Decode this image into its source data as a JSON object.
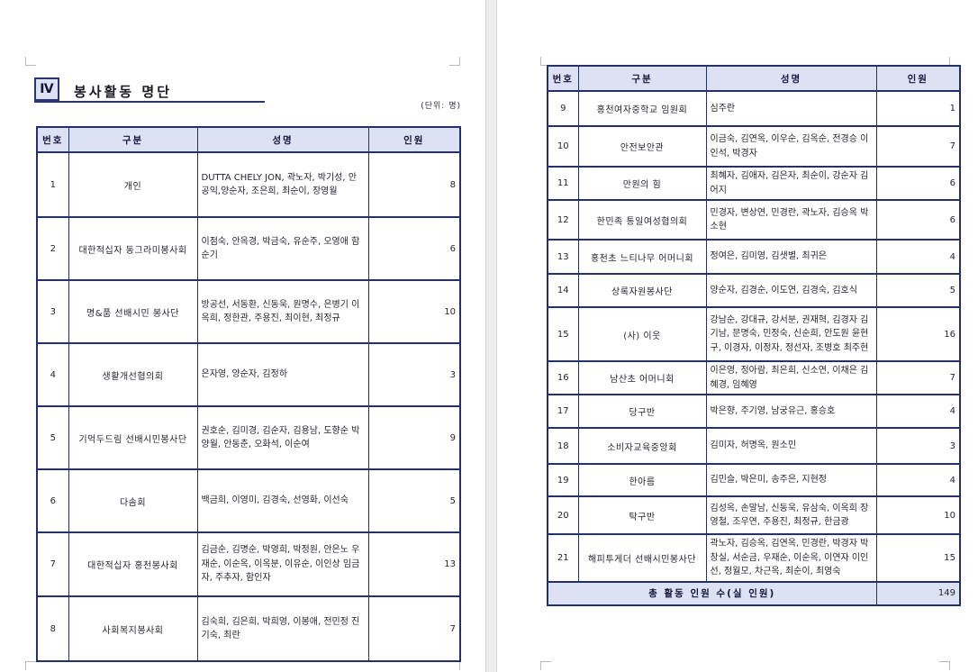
{
  "document": {
    "heading": {
      "numeral": "Ⅳ",
      "title": "봉사활동 명단"
    },
    "unit_note": "(단위: 명)",
    "columns": [
      "번호",
      "구분",
      "성명",
      "인원"
    ],
    "page1_rows": [
      {
        "no": "1",
        "group": "개인",
        "names": "DUTTA CHELY JON, 곽노자, 박기성, 안공익,양순자, 조은희, 최순이, 장영월",
        "count": "8"
      },
      {
        "no": "2",
        "group": "대한적십자 동그라미봉사회",
        "names": "이점숙, 안옥경, 박금숙, 유순주, 오영애 함순기",
        "count": "6"
      },
      {
        "no": "3",
        "group": "명&품 선배시민 봉사단",
        "names": "방공선, 서동환, 신동욱, 원명수, 은병기 이옥희, 정한관, 주용진, 최이현, 최정규",
        "count": "10"
      },
      {
        "no": "4",
        "group": "생활개선협의회",
        "names": "은자영, 양순자, 김정하",
        "count": "3"
      },
      {
        "no": "5",
        "group": "기억두드림 선배시민봉사단",
        "names": "권호순, 김미경, 김순자, 김용남, 도향순 박양월, 안동춘, 오화석, 이순여",
        "count": "9"
      },
      {
        "no": "6",
        "group": "다솜회",
        "names": "백금희, 이영미, 김경숙, 선영화, 이선숙",
        "count": "5"
      },
      {
        "no": "7",
        "group": "대한적십자 홍천봉사회",
        "names": "김금순, 김명순, 박영희, 박정원, 안은노 우재순, 이순옥, 이옥분, 이유순, 이인상 임금자, 주추자, 함인자",
        "count": "13"
      },
      {
        "no": "8",
        "group": "사회복지봉사회",
        "names": "김숙희, 김은희, 박희영, 이봉애, 전민정 진기숙, 최란",
        "count": "7"
      }
    ],
    "page2_rows": [
      {
        "no": "9",
        "group": "홍천여자중학교 임원회",
        "names": "심주란",
        "count": "1"
      },
      {
        "no": "10",
        "group": "안전보안관",
        "names": "이금숙, 김연옥, 이우순, 김옥순, 전경승 이인석, 박경자",
        "count": "7"
      },
      {
        "no": "11",
        "group": "만원의 힘",
        "names": "최혜자, 김애자, 김은자, 최순이, 강순자 김어지",
        "count": "6"
      },
      {
        "no": "12",
        "group": "한민족 통일여성협의회",
        "names": "민경자, 변상연, 민경란, 곽노자, 김승옥 박소현",
        "count": "6"
      },
      {
        "no": "13",
        "group": "홍천초 느티나무 어머니회",
        "names": "정여은, 김미영, 김샛별, 최귀은",
        "count": "4"
      },
      {
        "no": "14",
        "group": "상록자원봉사단",
        "names": "양순자, 김경순, 이도연, 김경숙, 김호식",
        "count": "5"
      },
      {
        "no": "15",
        "group": "(사) 이웃",
        "names": "강남순, 강대규, 강서분, 권재혁, 김경자 김기남, 문명숙, 민정숙, 신순희, 안도원 윤현구, 이경자, 이정자, 정선자, 조병호 최주현",
        "count": "16"
      },
      {
        "no": "16",
        "group": "남산초 어머니회",
        "names": "이은영, 정아람, 최은희, 신소연, 이채은 김혜경, 임혜영",
        "count": "7"
      },
      {
        "no": "17",
        "group": "당구반",
        "names": "박은향, 주기영, 남궁유근, 홍승호",
        "count": "4"
      },
      {
        "no": "18",
        "group": "소비자교육중앙회",
        "names": "김미자, 허명옥, 원소민",
        "count": "3"
      },
      {
        "no": "19",
        "group": "한아름",
        "names": "김민슬, 박은미, 송주은, 지현정",
        "count": "4"
      },
      {
        "no": "20",
        "group": "탁구반",
        "names": "김성옥, 손말남, 신동욱, 유삼숙, 이옥희 장영철, 조우연, 주용진, 최정규, 한금광",
        "count": "10"
      },
      {
        "no": "21",
        "group": "해피투게더 선배시민봉사단",
        "names": "곽노자, 김승옥, 김연옥, 민경란, 박경자 박창실, 서순금, 우재순, 이순옥, 이연자 이인선, 정월모, 차근옥, 최순이, 최영숙",
        "count": "15"
      }
    ],
    "total": {
      "label": "총 활동 인원 수(실 인원)",
      "value": "149"
    },
    "colors": {
      "border": "#252f6b",
      "header_bg": "#dce1f3",
      "accent_box_bg": "#dce1f3"
    }
  }
}
